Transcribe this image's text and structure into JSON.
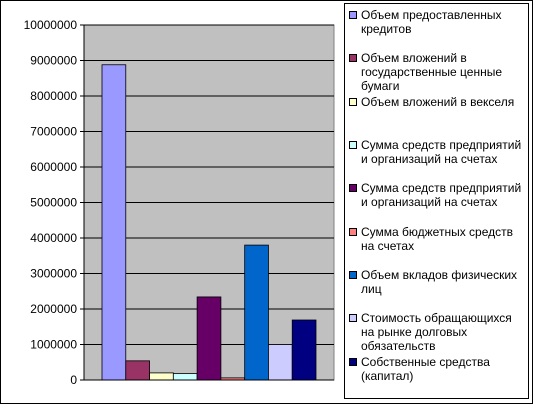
{
  "chart_data": {
    "type": "bar",
    "title": "",
    "xlabel": "",
    "ylabel": "",
    "ylim": [
      0,
      10000000
    ],
    "y_ticks": [
      "0",
      "1000000",
      "2000000",
      "3000000",
      "4000000",
      "5000000",
      "6000000",
      "7000000",
      "8000000",
      "9000000",
      "10000000"
    ],
    "grid": true,
    "legend_position": "right",
    "plot_background": "#c0c0c0",
    "series": [
      {
        "name": "Объем предоставленных кредитов",
        "value": 8880000,
        "color": "#9999ff"
      },
      {
        "name": "Объем вложений в государственные ценные бумаги",
        "value": 540000,
        "color": "#993366"
      },
      {
        "name": "Объем вложений в векселя",
        "value": 200000,
        "color": "#ffffcc"
      },
      {
        "name": "Сумма средств предприятий и организаций на счетах",
        "value": 180000,
        "color": "#ccffff"
      },
      {
        "name": "Сумма средств предприятий и организаций на счетах",
        "value": 2340000,
        "color": "#660066"
      },
      {
        "name": "Сумма бюджетных средств на счетах",
        "value": 60000,
        "color": "#ff8080"
      },
      {
        "name": "Объем вкладов физических лиц",
        "value": 3800000,
        "color": "#0066cc"
      },
      {
        "name": "Стоимость обращающихся на рынке долговых обязательств",
        "value": 1000000,
        "color": "#ccccff"
      },
      {
        "name": "Собственные средства (капитал)",
        "value": 1690000,
        "color": "#000080"
      }
    ]
  }
}
